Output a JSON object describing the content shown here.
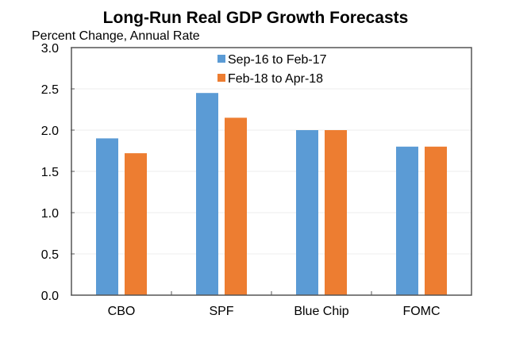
{
  "chart_data": {
    "type": "bar",
    "title": "Long-Run Real GDP Growth Forecasts",
    "subtitle": "Percent Change, Annual Rate",
    "xlabel": "",
    "ylabel": "Percent Change, Annual Rate",
    "categories": [
      "CBO",
      "SPF",
      "Blue Chip",
      "FOMC"
    ],
    "series": [
      {
        "name": "Sep-16 to Feb-17",
        "color": "#5B9BD5",
        "values": [
          1.9,
          2.45,
          2.0,
          1.8
        ]
      },
      {
        "name": "Feb-18 to Apr-18",
        "color": "#ED7D31",
        "values": [
          1.72,
          2.15,
          2.0,
          1.8
        ]
      }
    ],
    "ylim": [
      0,
      3.0
    ],
    "yticks": [
      "0.0",
      "0.5",
      "1.0",
      "1.5",
      "2.0",
      "2.5",
      "3.0"
    ],
    "grid": true,
    "legend": "top-center"
  }
}
